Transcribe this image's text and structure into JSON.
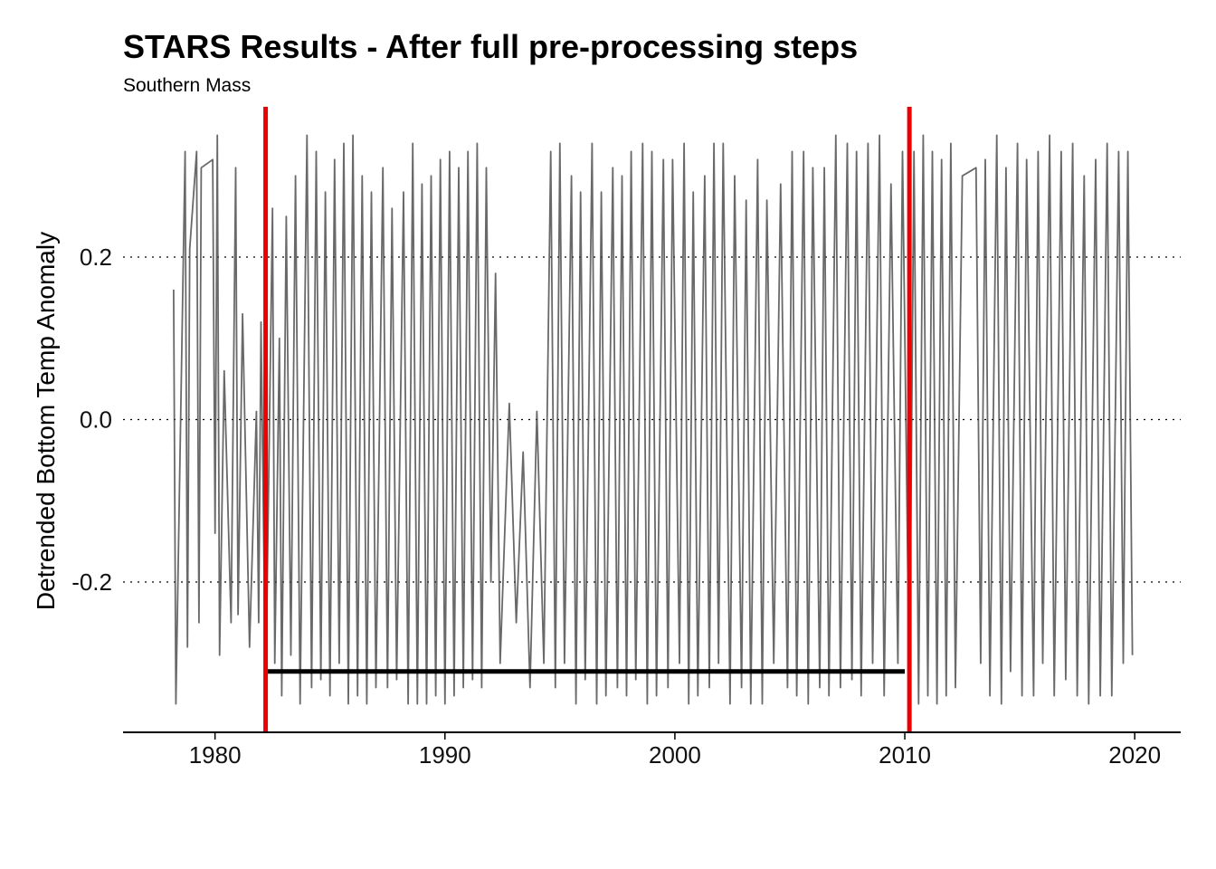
{
  "chart_data": {
    "type": "line",
    "title": "STARS Results - After full pre-processing steps",
    "subtitle": "Southern Mass",
    "xlabel": "",
    "ylabel": "Detrended Bottom Temp Anomaly",
    "xlim": [
      1976,
      2022
    ],
    "ylim": [
      -0.385,
      0.385
    ],
    "x_ticks": [
      1980,
      1990,
      2000,
      2010,
      2020
    ],
    "x_tick_labels": [
      "1980",
      "1990",
      "2000",
      "2010",
      "2020"
    ],
    "y_ticks": [
      0.2,
      0.0,
      -0.2
    ],
    "y_tick_labels": [
      "0.2",
      "0.0",
      "-0.2"
    ],
    "grid": "horizontal dotted at y ticks",
    "legend": "none",
    "series": [
      {
        "kind": "time-series",
        "color": "#444444",
        "x_start": 1978.2,
        "x_end": 2019.9,
        "value_range": [
          -0.35,
          0.35
        ],
        "points": [
          [
            1978.2,
            0.16
          ],
          [
            1978.3,
            -0.35
          ],
          [
            1978.7,
            0.33
          ],
          [
            1978.8,
            -0.28
          ],
          [
            1978.9,
            0.21
          ],
          [
            1979.2,
            0.33
          ],
          [
            1979.3,
            -0.25
          ],
          [
            1979.4,
            0.31
          ],
          [
            1979.9,
            0.32
          ],
          [
            1980.0,
            -0.14
          ],
          [
            1980.1,
            0.35
          ],
          [
            1980.2,
            -0.29
          ],
          [
            1980.4,
            0.06
          ],
          [
            1980.7,
            -0.25
          ],
          [
            1980.9,
            0.31
          ],
          [
            1981.0,
            -0.24
          ],
          [
            1981.2,
            0.13
          ],
          [
            1981.5,
            -0.28
          ],
          [
            1981.8,
            0.01
          ],
          [
            1981.9,
            -0.25
          ],
          [
            1982.0,
            0.12
          ],
          [
            1982.2,
            -0.34
          ],
          [
            1982.5,
            0.26
          ],
          [
            1982.6,
            -0.3
          ],
          [
            1982.8,
            0.1
          ],
          [
            1982.9,
            -0.34
          ],
          [
            1983.1,
            0.25
          ],
          [
            1983.3,
            -0.29
          ],
          [
            1983.5,
            0.3
          ],
          [
            1983.7,
            -0.35
          ],
          [
            1984.0,
            0.35
          ],
          [
            1984.2,
            -0.33
          ],
          [
            1984.4,
            0.33
          ],
          [
            1984.6,
            -0.32
          ],
          [
            1984.8,
            0.28
          ],
          [
            1985.0,
            -0.34
          ],
          [
            1985.2,
            0.32
          ],
          [
            1985.4,
            -0.3
          ],
          [
            1985.6,
            0.34
          ],
          [
            1985.8,
            -0.35
          ],
          [
            1986.0,
            0.35
          ],
          [
            1986.2,
            -0.34
          ],
          [
            1986.4,
            0.3
          ],
          [
            1986.6,
            -0.35
          ],
          [
            1986.8,
            0.28
          ],
          [
            1987.0,
            -0.33
          ],
          [
            1987.3,
            0.31
          ],
          [
            1987.5,
            -0.33
          ],
          [
            1987.7,
            0.26
          ],
          [
            1987.9,
            -0.32
          ],
          [
            1988.2,
            0.28
          ],
          [
            1988.4,
            -0.35
          ],
          [
            1988.6,
            0.34
          ],
          [
            1988.8,
            -0.35
          ],
          [
            1989.0,
            0.29
          ],
          [
            1989.2,
            -0.35
          ],
          [
            1989.4,
            0.3
          ],
          [
            1989.6,
            -0.34
          ],
          [
            1989.8,
            0.32
          ],
          [
            1990.0,
            -0.35
          ],
          [
            1990.2,
            0.33
          ],
          [
            1990.4,
            -0.34
          ],
          [
            1990.6,
            0.31
          ],
          [
            1990.8,
            -0.33
          ],
          [
            1991.0,
            0.33
          ],
          [
            1991.2,
            -0.32
          ],
          [
            1991.4,
            0.34
          ],
          [
            1991.6,
            -0.33
          ],
          [
            1991.8,
            0.31
          ],
          [
            1992.0,
            -0.2
          ],
          [
            1992.2,
            0.18
          ],
          [
            1992.4,
            -0.3
          ],
          [
            1992.8,
            0.02
          ],
          [
            1993.1,
            -0.25
          ],
          [
            1993.4,
            -0.04
          ],
          [
            1993.7,
            -0.33
          ],
          [
            1994.0,
            0.01
          ],
          [
            1994.3,
            -0.3
          ],
          [
            1994.6,
            0.33
          ],
          [
            1994.8,
            -0.33
          ],
          [
            1995.0,
            0.34
          ],
          [
            1995.2,
            -0.3
          ],
          [
            1995.5,
            0.3
          ],
          [
            1995.7,
            -0.35
          ],
          [
            1995.9,
            0.28
          ],
          [
            1996.1,
            -0.32
          ],
          [
            1996.4,
            0.34
          ],
          [
            1996.6,
            -0.35
          ],
          [
            1996.8,
            0.28
          ],
          [
            1997.0,
            -0.34
          ],
          [
            1997.3,
            0.31
          ],
          [
            1997.5,
            -0.33
          ],
          [
            1997.7,
            0.3
          ],
          [
            1997.9,
            -0.34
          ],
          [
            1998.1,
            0.33
          ],
          [
            1998.3,
            -0.32
          ],
          [
            1998.6,
            0.34
          ],
          [
            1998.8,
            -0.35
          ],
          [
            1999.0,
            0.33
          ],
          [
            1999.2,
            -0.34
          ],
          [
            1999.5,
            0.32
          ],
          [
            1999.7,
            -0.33
          ],
          [
            1999.9,
            0.32
          ],
          [
            2000.2,
            -0.3
          ],
          [
            2000.4,
            0.34
          ],
          [
            2000.6,
            -0.35
          ],
          [
            2000.8,
            0.28
          ],
          [
            2001.0,
            -0.34
          ],
          [
            2001.3,
            0.3
          ],
          [
            2001.5,
            -0.33
          ],
          [
            2001.7,
            0.34
          ],
          [
            2001.9,
            -0.3
          ],
          [
            2002.1,
            0.34
          ],
          [
            2002.4,
            -0.35
          ],
          [
            2002.6,
            0.3
          ],
          [
            2002.9,
            -0.33
          ],
          [
            2003.1,
            0.27
          ],
          [
            2003.3,
            -0.35
          ],
          [
            2003.6,
            0.32
          ],
          [
            2003.8,
            -0.35
          ],
          [
            2004.0,
            0.27
          ],
          [
            2004.3,
            -0.3
          ],
          [
            2004.6,
            0.29
          ],
          [
            2004.9,
            -0.33
          ],
          [
            2005.1,
            0.33
          ],
          [
            2005.3,
            -0.34
          ],
          [
            2005.6,
            0.33
          ],
          [
            2005.8,
            -0.35
          ],
          [
            2006.0,
            0.31
          ],
          [
            2006.3,
            -0.33
          ],
          [
            2006.5,
            0.31
          ],
          [
            2006.7,
            -0.34
          ],
          [
            2007.0,
            0.35
          ],
          [
            2007.2,
            -0.33
          ],
          [
            2007.5,
            0.34
          ],
          [
            2007.7,
            -0.32
          ],
          [
            2007.9,
            0.33
          ],
          [
            2008.1,
            -0.34
          ],
          [
            2008.4,
            0.34
          ],
          [
            2008.6,
            -0.3
          ],
          [
            2008.9,
            0.35
          ],
          [
            2009.1,
            -0.34
          ],
          [
            2009.4,
            0.29
          ],
          [
            2009.7,
            -0.3
          ],
          [
            2009.9,
            0.33
          ],
          [
            2010.2,
            -0.34
          ],
          [
            2010.4,
            0.33
          ],
          [
            2010.6,
            -0.35
          ],
          [
            2010.8,
            0.35
          ],
          [
            2011.0,
            -0.34
          ],
          [
            2011.2,
            0.33
          ],
          [
            2011.4,
            -0.35
          ],
          [
            2011.6,
            0.32
          ],
          [
            2011.8,
            -0.34
          ],
          [
            2012.0,
            0.34
          ],
          [
            2012.2,
            -0.33
          ],
          [
            2012.5,
            0.3
          ],
          [
            2013.1,
            0.31
          ],
          [
            2013.3,
            -0.3
          ],
          [
            2013.5,
            0.32
          ],
          [
            2013.7,
            -0.34
          ],
          [
            2014.0,
            0.35
          ],
          [
            2014.2,
            -0.35
          ],
          [
            2014.4,
            0.31
          ],
          [
            2014.6,
            -0.31
          ],
          [
            2014.9,
            0.34
          ],
          [
            2015.1,
            -0.34
          ],
          [
            2015.3,
            0.32
          ],
          [
            2015.6,
            -0.34
          ],
          [
            2015.8,
            0.33
          ],
          [
            2016.0,
            -0.3
          ],
          [
            2016.3,
            0.35
          ],
          [
            2016.5,
            -0.34
          ],
          [
            2016.8,
            0.33
          ],
          [
            2017.0,
            -0.32
          ],
          [
            2017.3,
            0.34
          ],
          [
            2017.5,
            -0.34
          ],
          [
            2017.8,
            0.3
          ],
          [
            2018.0,
            -0.35
          ],
          [
            2018.3,
            0.32
          ],
          [
            2018.5,
            -0.34
          ],
          [
            2018.8,
            0.34
          ],
          [
            2019.0,
            -0.34
          ],
          [
            2019.3,
            0.33
          ],
          [
            2019.5,
            -0.3
          ],
          [
            2019.7,
            0.33
          ],
          [
            2019.9,
            -0.29
          ]
        ]
      }
    ],
    "regime_shifts": [
      {
        "x": 1982.2,
        "color": "#ee0000"
      },
      {
        "x": 2010.2,
        "color": "#ee0000"
      }
    ],
    "regime_means": [
      {
        "x_start": 1982.2,
        "x_end": 2010.0,
        "y": -0.31,
        "color": "#000000"
      }
    ]
  }
}
